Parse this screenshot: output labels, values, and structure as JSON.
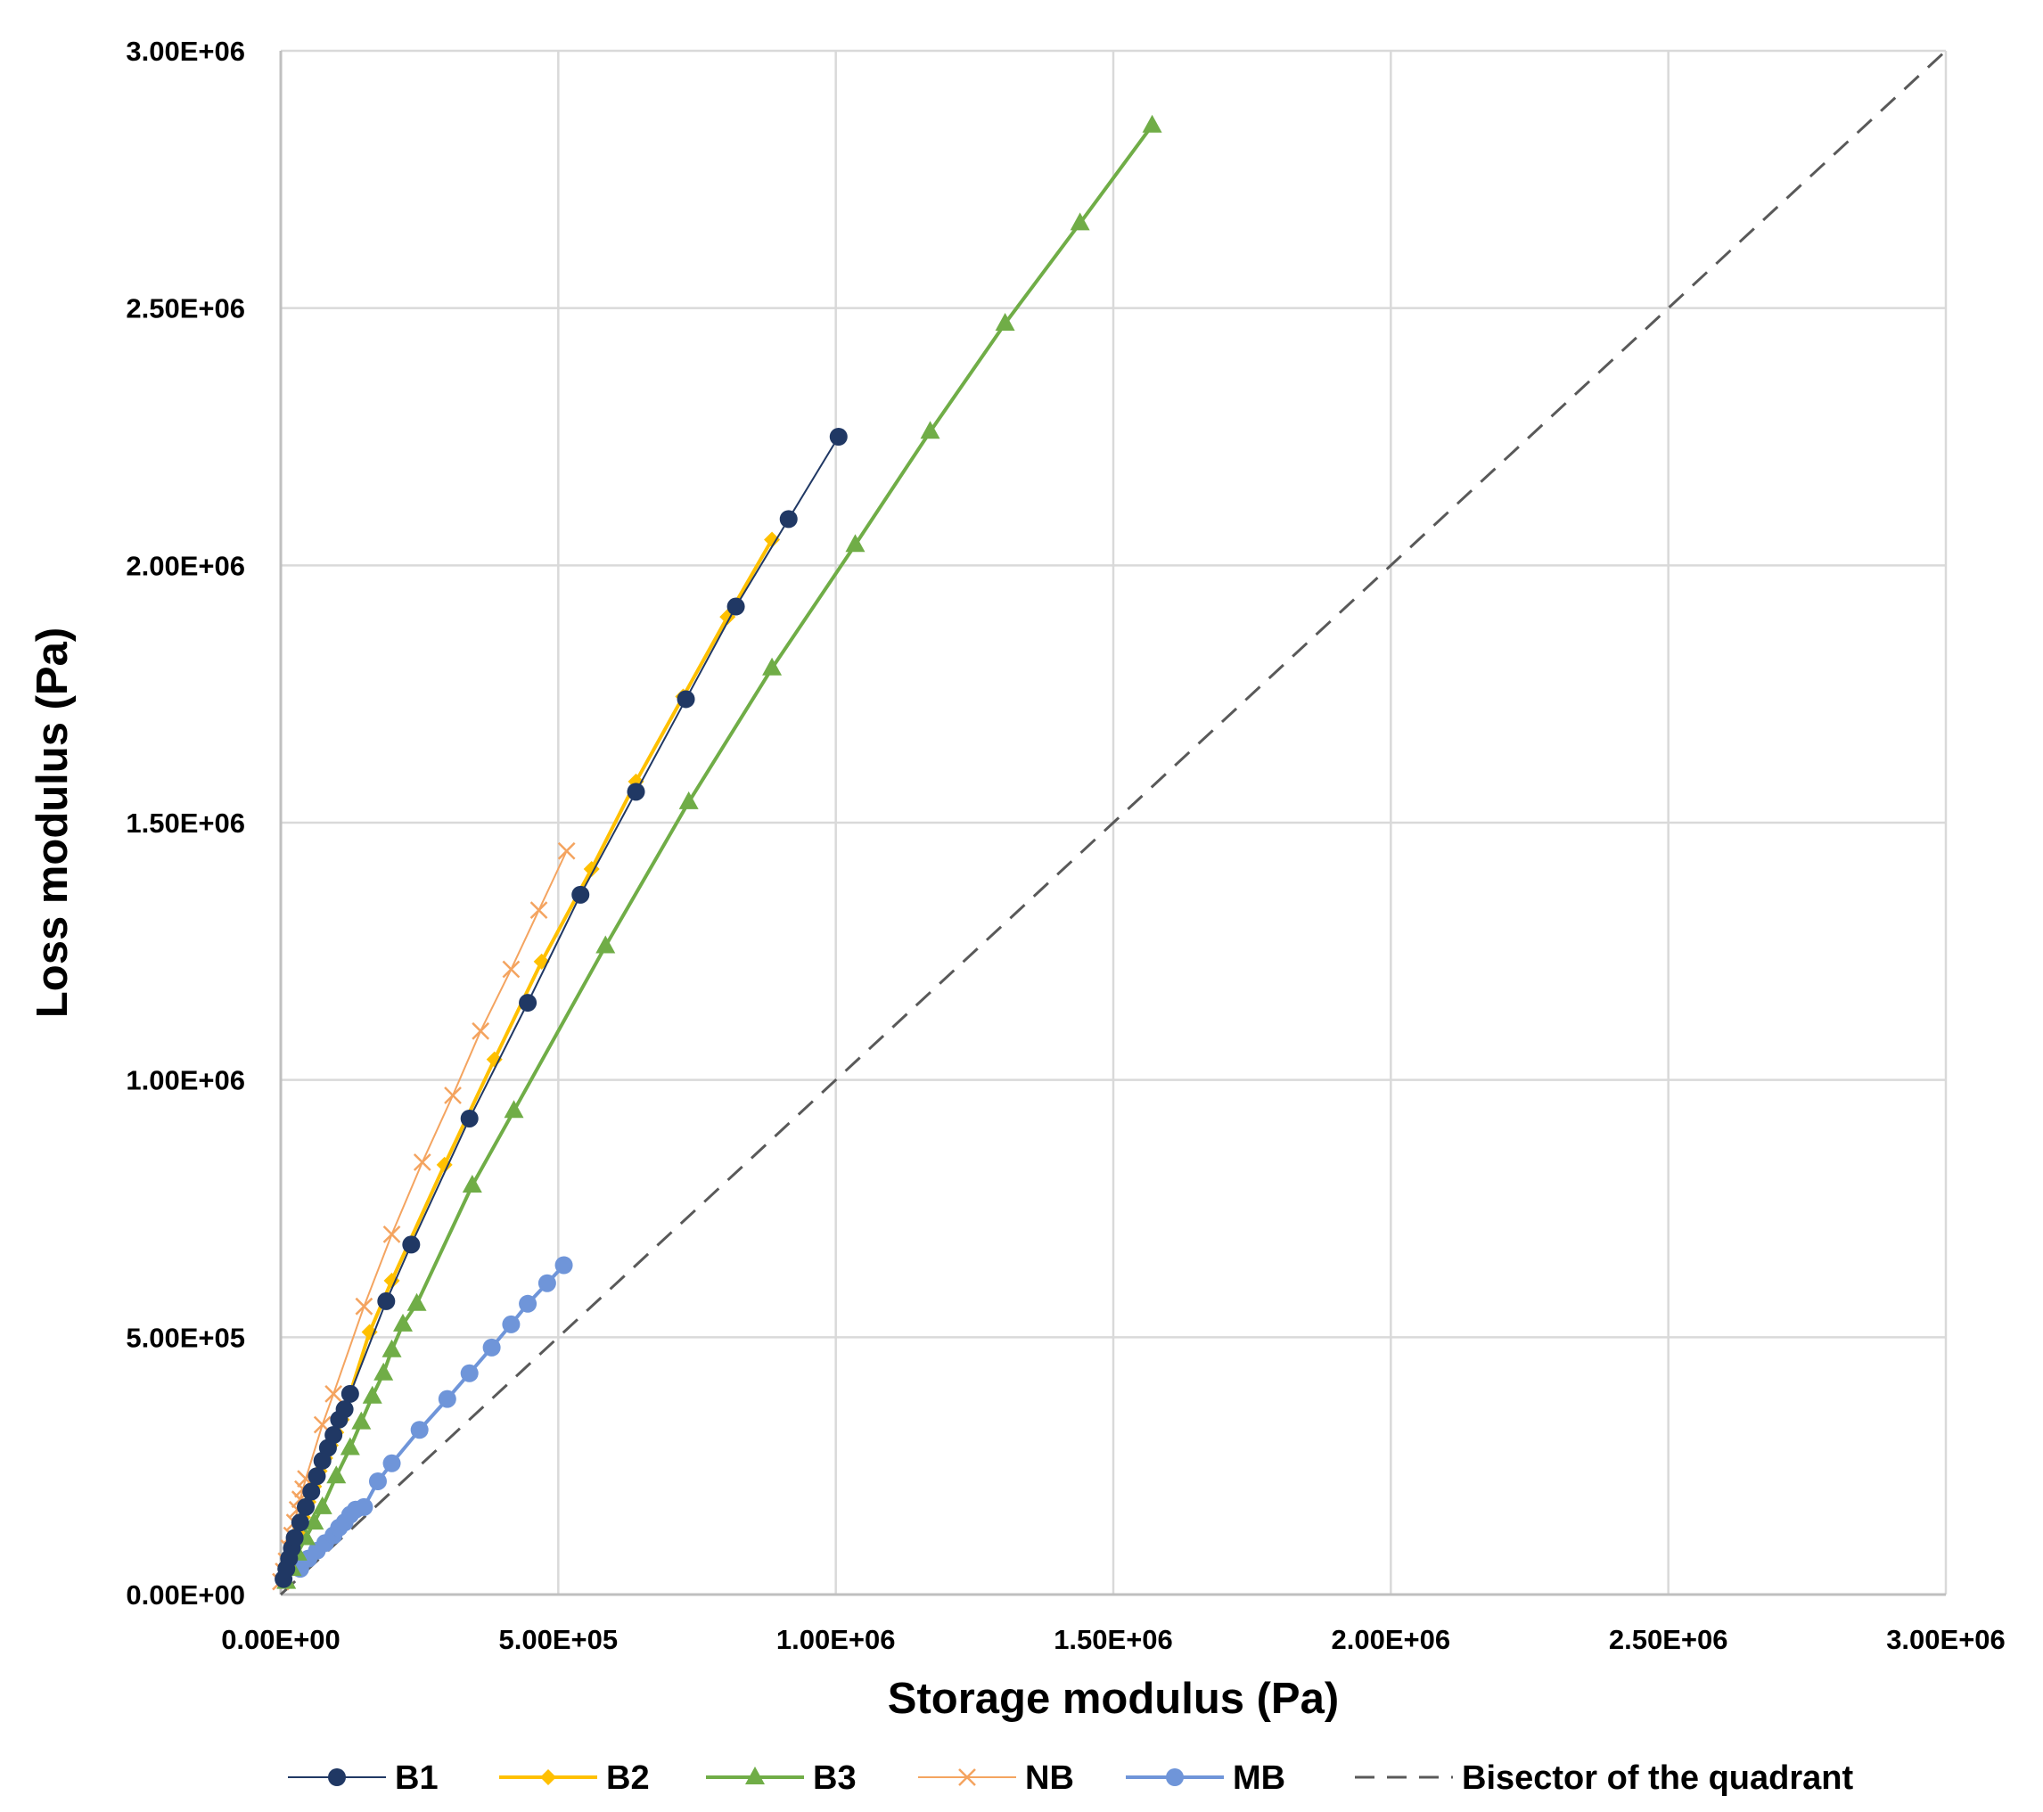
{
  "chart_data": {
    "type": "scatter",
    "title": "",
    "xlabel": "Storage modulus (Pa)",
    "ylabel": "Loss modulus (Pa)",
    "xlim": [
      0,
      3000000
    ],
    "ylim": [
      0,
      3000000
    ],
    "grid": true,
    "legend_position": "bottom",
    "x_ticks": [
      "0.00E+00",
      "5.00E+05",
      "1.00E+06",
      "1.50E+06",
      "2.00E+06",
      "2.50E+06",
      "3.00E+06"
    ],
    "y_ticks": [
      "0.00E+00",
      "5.00E+05",
      "1.00E+06",
      "1.50E+06",
      "2.00E+06",
      "2.50E+06",
      "3.00E+06"
    ],
    "series": [
      {
        "name": "B1",
        "color": "#203864",
        "marker": "circle",
        "line": "solid",
        "width": 2,
        "points": [
          [
            5000,
            30000
          ],
          [
            10000,
            50000
          ],
          [
            15000,
            70000
          ],
          [
            20000,
            90000
          ],
          [
            25000,
            110000
          ],
          [
            35000,
            140000
          ],
          [
            45000,
            170000
          ],
          [
            55000,
            200000
          ],
          [
            65000,
            230000
          ],
          [
            75000,
            260000
          ],
          [
            85000,
            285000
          ],
          [
            95000,
            310000
          ],
          [
            105000,
            340000
          ],
          [
            115000,
            360000
          ],
          [
            125000,
            390000
          ],
          [
            190000,
            570000
          ],
          [
            235000,
            680000
          ],
          [
            340000,
            925000
          ],
          [
            445000,
            1150000
          ],
          [
            540000,
            1360000
          ],
          [
            640000,
            1560000
          ],
          [
            730000,
            1740000
          ],
          [
            820000,
            1920000
          ],
          [
            915000,
            2090000
          ],
          [
            1005000,
            2250000
          ]
        ]
      },
      {
        "name": "B2",
        "color": "#FFC000",
        "marker": "diamond",
        "line": "solid",
        "width": 4,
        "points": [
          [
            5000,
            30000
          ],
          [
            12000,
            55000
          ],
          [
            20000,
            85000
          ],
          [
            30000,
            120000
          ],
          [
            40000,
            150000
          ],
          [
            50000,
            180000
          ],
          [
            60000,
            210000
          ],
          [
            70000,
            240000
          ],
          [
            80000,
            265000
          ],
          [
            90000,
            290000
          ],
          [
            100000,
            315000
          ],
          [
            110000,
            340000
          ],
          [
            160000,
            510000
          ],
          [
            200000,
            610000
          ],
          [
            295000,
            835000
          ],
          [
            385000,
            1040000
          ],
          [
            470000,
            1230000
          ],
          [
            560000,
            1410000
          ],
          [
            640000,
            1580000
          ],
          [
            725000,
            1745000
          ],
          [
            805000,
            1900000
          ],
          [
            885000,
            2050000
          ]
        ]
      },
      {
        "name": "B3",
        "color": "#70AD47",
        "marker": "triangle",
        "line": "solid",
        "width": 4,
        "points": [
          [
            10000,
            25000
          ],
          [
            20000,
            50000
          ],
          [
            30000,
            80000
          ],
          [
            45000,
            110000
          ],
          [
            60000,
            140000
          ],
          [
            75000,
            170000
          ],
          [
            100000,
            230000
          ],
          [
            125000,
            285000
          ],
          [
            145000,
            335000
          ],
          [
            165000,
            385000
          ],
          [
            185000,
            430000
          ],
          [
            200000,
            475000
          ],
          [
            220000,
            525000
          ],
          [
            245000,
            565000
          ],
          [
            345000,
            795000
          ],
          [
            420000,
            940000
          ],
          [
            585000,
            1260000
          ],
          [
            735000,
            1540000
          ],
          [
            885000,
            1800000
          ],
          [
            1035000,
            2040000
          ],
          [
            1170000,
            2260000
          ],
          [
            1305000,
            2470000
          ],
          [
            1440000,
            2665000
          ],
          [
            1570000,
            2855000
          ]
        ]
      },
      {
        "name": "NB",
        "color": "#F4A460",
        "marker": "x",
        "line": "solid",
        "width": 2,
        "points": [
          [
            0,
            25000
          ],
          [
            5000,
            45000
          ],
          [
            10000,
            65000
          ],
          [
            15000,
            90000
          ],
          [
            20000,
            115000
          ],
          [
            25000,
            140000
          ],
          [
            30000,
            165000
          ],
          [
            35000,
            185000
          ],
          [
            40000,
            205000
          ],
          [
            45000,
            225000
          ],
          [
            75000,
            330000
          ],
          [
            95000,
            390000
          ],
          [
            150000,
            560000
          ],
          [
            200000,
            700000
          ],
          [
            255000,
            840000
          ],
          [
            310000,
            970000
          ],
          [
            360000,
            1095000
          ],
          [
            415000,
            1215000
          ],
          [
            465000,
            1330000
          ],
          [
            515000,
            1445000
          ]
        ]
      },
      {
        "name": "MB",
        "color": "#6F95D9",
        "marker": "circle",
        "line": "solid",
        "width": 4,
        "points": [
          [
            35000,
            50000
          ],
          [
            50000,
            70000
          ],
          [
            65000,
            85000
          ],
          [
            80000,
            100000
          ],
          [
            95000,
            115000
          ],
          [
            105000,
            130000
          ],
          [
            115000,
            140000
          ],
          [
            125000,
            155000
          ],
          [
            135000,
            165000
          ],
          [
            150000,
            170000
          ],
          [
            175000,
            220000
          ],
          [
            200000,
            255000
          ],
          [
            250000,
            320000
          ],
          [
            300000,
            380000
          ],
          [
            340000,
            430000
          ],
          [
            380000,
            480000
          ],
          [
            415000,
            525000
          ],
          [
            445000,
            565000
          ],
          [
            480000,
            605000
          ],
          [
            510000,
            640000
          ]
        ]
      },
      {
        "name": "Bisector of the quadrant",
        "color": "#595959",
        "marker": "none",
        "line": "dashed",
        "width": 3,
        "points": [
          [
            0,
            0
          ],
          [
            3000000,
            3000000
          ]
        ]
      }
    ]
  }
}
